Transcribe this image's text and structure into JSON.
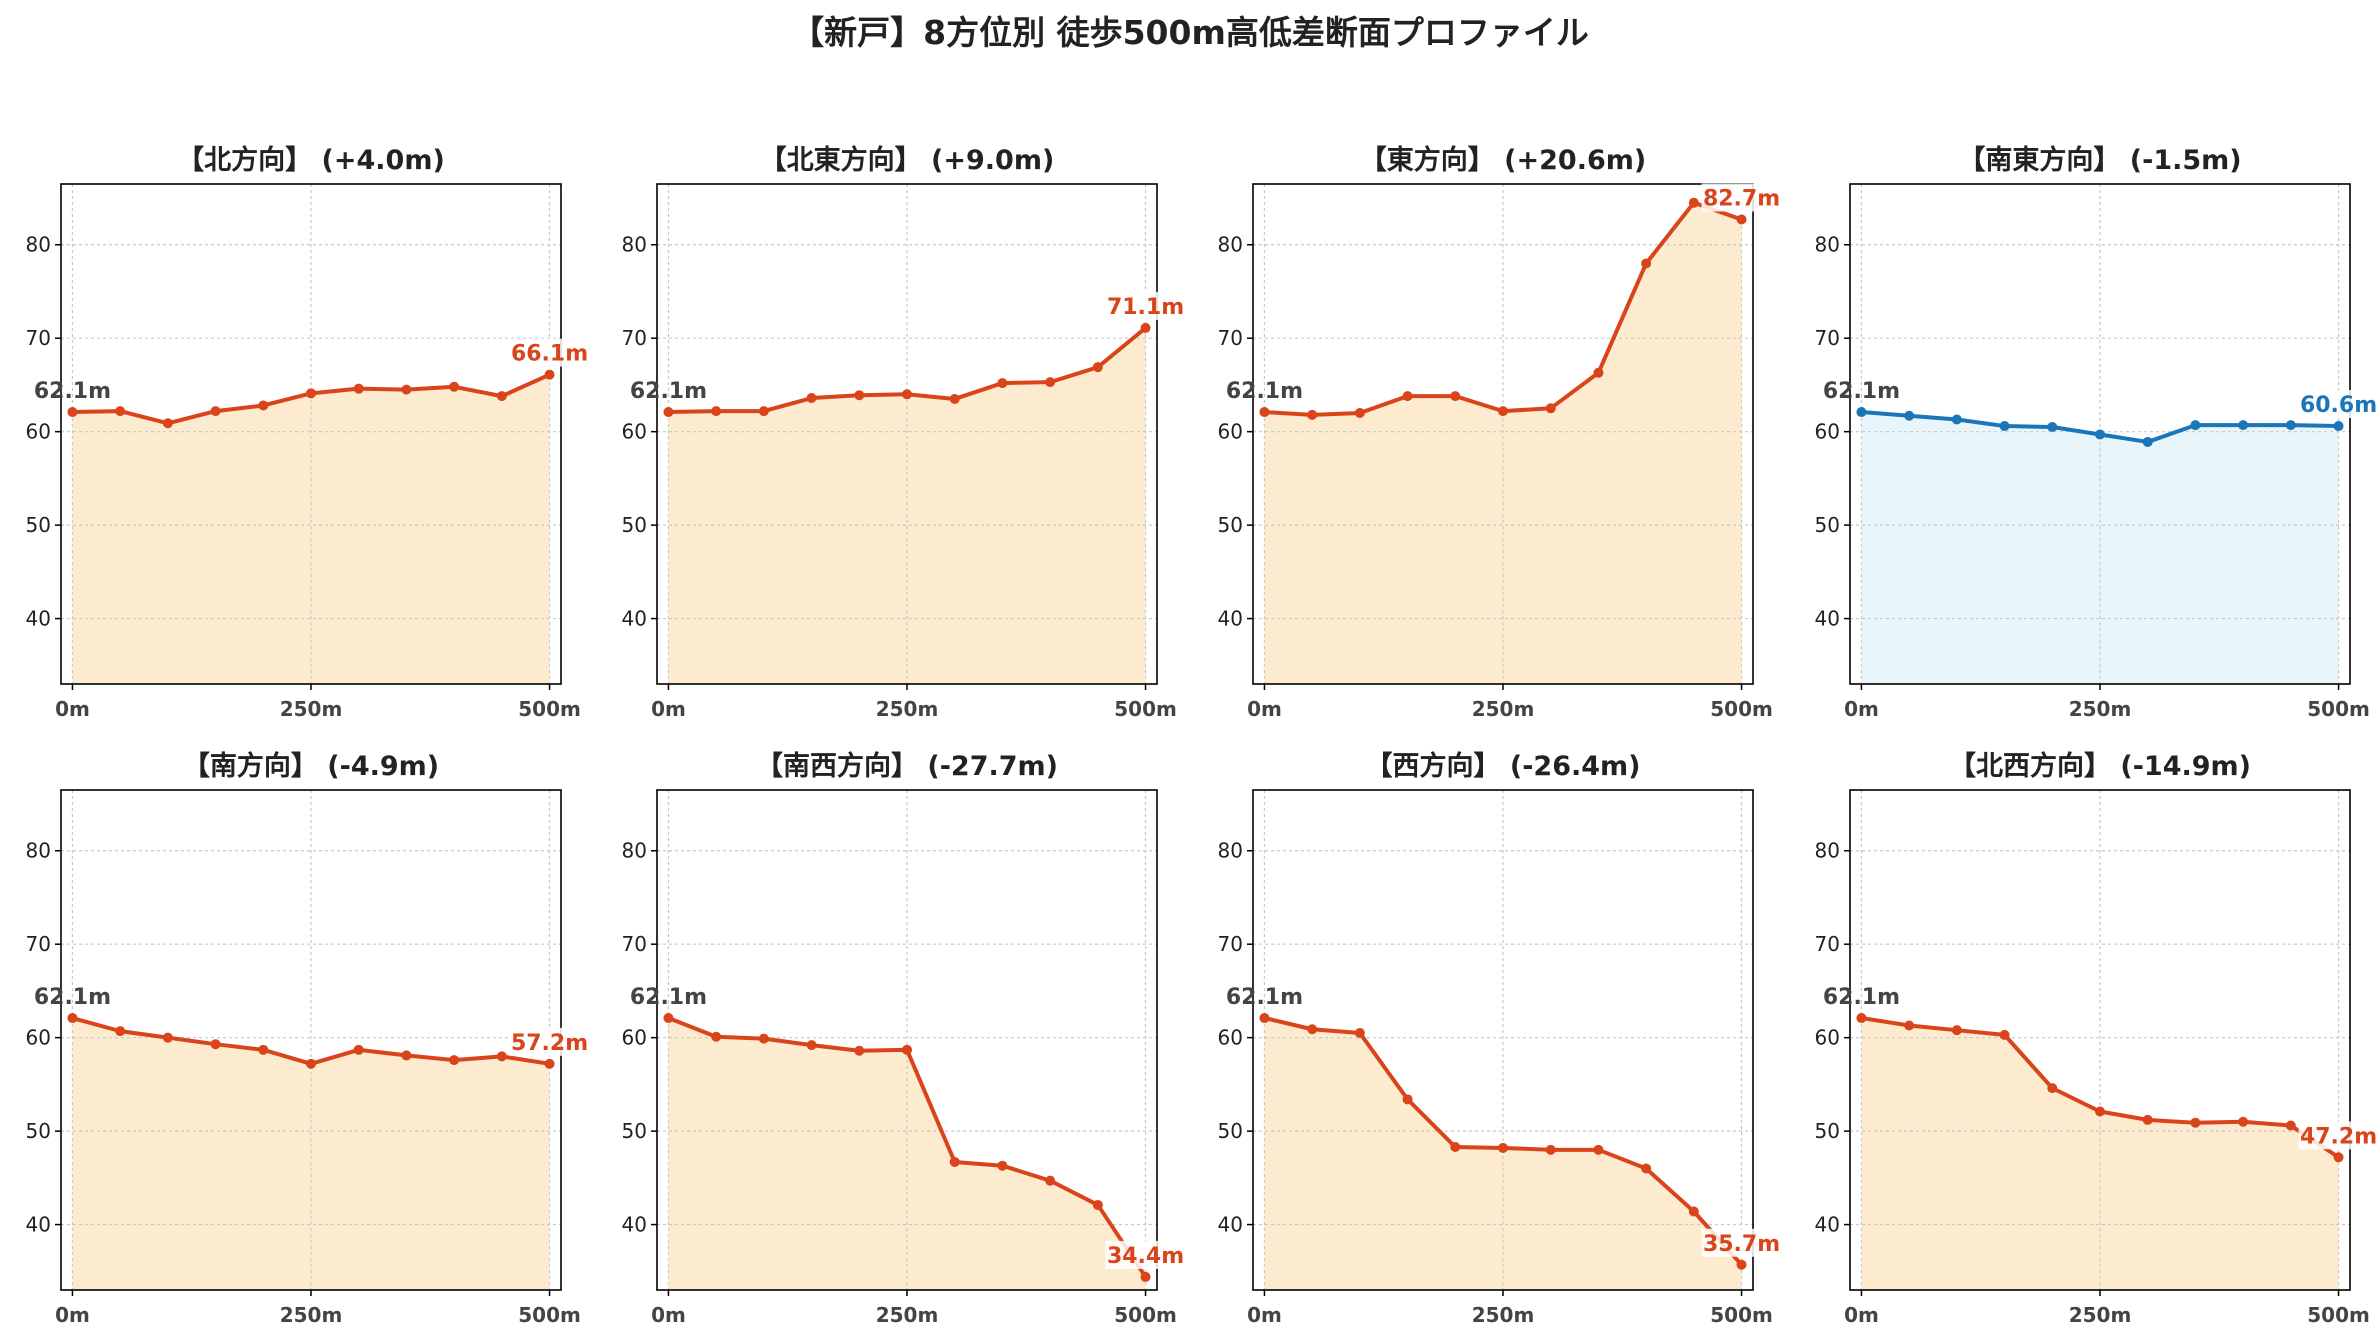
{
  "title": "【新戸】8方位別 徒歩500m高低差断面プロファイル",
  "colors": {
    "up_line": "#d9441a",
    "up_fill": "#fdebd0",
    "down_line": "#d9441a",
    "down_fill": "#fdebd0",
    "flat_line": "#1a76b8",
    "flat_fill": "#e8f6fc",
    "start_label": "#444444",
    "grid": "#c8c8c8"
  },
  "chart_data": [
    {
      "type": "area",
      "title": "【北方向】 (+4.0m)",
      "x": [
        0,
        50,
        100,
        150,
        200,
        250,
        300,
        350,
        400,
        450,
        500
      ],
      "values": [
        62.1,
        62.2,
        60.9,
        62.2,
        62.8,
        64.1,
        64.6,
        64.5,
        64.8,
        63.8,
        66.1
      ],
      "start_label": "62.1m",
      "end_label": "66.1m",
      "tone": "up"
    },
    {
      "type": "area",
      "title": "【北東方向】 (+9.0m)",
      "x": [
        0,
        50,
        100,
        150,
        200,
        250,
        300,
        350,
        400,
        450,
        500
      ],
      "values": [
        62.1,
        62.2,
        62.2,
        63.6,
        63.9,
        64.0,
        63.5,
        65.2,
        65.3,
        66.9,
        71.1
      ],
      "start_label": "62.1m",
      "end_label": "71.1m",
      "tone": "up"
    },
    {
      "type": "area",
      "title": "【東方向】 (+20.6m)",
      "x": [
        0,
        50,
        100,
        150,
        200,
        250,
        300,
        350,
        400,
        450,
        500
      ],
      "values": [
        62.1,
        61.8,
        62.0,
        63.8,
        63.8,
        62.2,
        62.5,
        66.3,
        78.0,
        84.5,
        82.7
      ],
      "start_label": "62.1m",
      "end_label": "82.7m",
      "tone": "up"
    },
    {
      "type": "area",
      "title": "【南東方向】 (-1.5m)",
      "x": [
        0,
        50,
        100,
        150,
        200,
        250,
        300,
        350,
        400,
        450,
        500
      ],
      "values": [
        62.1,
        61.7,
        61.3,
        60.6,
        60.5,
        59.7,
        58.9,
        60.7,
        60.7,
        60.7,
        60.6
      ],
      "start_label": "62.1m",
      "end_label": "60.6m",
      "tone": "flat"
    },
    {
      "type": "area",
      "title": "【南方向】 (-4.9m)",
      "x": [
        0,
        50,
        100,
        150,
        200,
        250,
        300,
        350,
        400,
        450,
        500
      ],
      "values": [
        62.1,
        60.7,
        60.0,
        59.3,
        58.7,
        57.2,
        58.7,
        58.1,
        57.6,
        58.0,
        57.2
      ],
      "start_label": "62.1m",
      "end_label": "57.2m",
      "tone": "down"
    },
    {
      "type": "area",
      "title": "【南西方向】 (-27.7m)",
      "x": [
        0,
        50,
        100,
        150,
        200,
        250,
        300,
        350,
        400,
        450,
        500
      ],
      "values": [
        62.1,
        60.1,
        59.9,
        59.2,
        58.6,
        58.7,
        46.7,
        46.3,
        44.7,
        42.1,
        34.4
      ],
      "start_label": "62.1m",
      "end_label": "34.4m",
      "tone": "down"
    },
    {
      "type": "area",
      "title": "【西方向】 (-26.4m)",
      "x": [
        0,
        50,
        100,
        150,
        200,
        250,
        300,
        350,
        400,
        450,
        500
      ],
      "values": [
        62.1,
        60.9,
        60.5,
        53.4,
        48.3,
        48.2,
        48.0,
        48.0,
        46.0,
        41.4,
        35.7
      ],
      "start_label": "62.1m",
      "end_label": "35.7m",
      "tone": "down"
    },
    {
      "type": "area",
      "title": "【北西方向】 (-14.9m)",
      "x": [
        0,
        50,
        100,
        150,
        200,
        250,
        300,
        350,
        400,
        450,
        500
      ],
      "values": [
        62.1,
        61.3,
        60.8,
        60.3,
        54.6,
        52.1,
        51.2,
        50.9,
        51.0,
        50.6,
        47.2
      ],
      "start_label": "62.1m",
      "end_label": "47.2m",
      "tone": "down"
    }
  ],
  "axes": {
    "x_ticks": [
      0,
      250,
      500
    ],
    "x_tick_labels": [
      "0m",
      "250m",
      "500m"
    ],
    "x_range": [
      -12,
      512
    ],
    "y_ticks": [
      40,
      50,
      60,
      70,
      80
    ],
    "y_tick_labels": [
      "40",
      "50",
      "60",
      "70",
      "80"
    ],
    "y_range": [
      33,
      86.5
    ],
    "grid": true
  }
}
